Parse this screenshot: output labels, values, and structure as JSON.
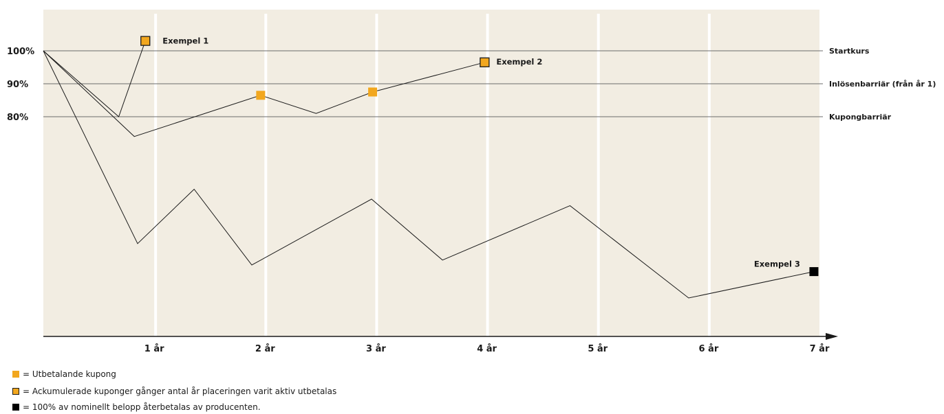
{
  "chart_data": {
    "type": "line",
    "colors": {
      "background": "#f2ede2",
      "grid": "#ffffff",
      "coupon": "#f2a71e",
      "line": "#1a1a1a"
    },
    "x_ticks": [
      {
        "x": 1,
        "label": "1 år"
      },
      {
        "x": 2,
        "label": "2 år"
      },
      {
        "x": 3,
        "label": "3 år"
      },
      {
        "x": 4,
        "label": "4 år"
      },
      {
        "x": 5,
        "label": "5 år"
      },
      {
        "x": 6,
        "label": "6 år"
      },
      {
        "x": 7,
        "label": "7 år"
      }
    ],
    "xlim": [
      0,
      7
    ],
    "ylim": [
      20,
      110
    ],
    "y_ticks": [
      {
        "y": 100,
        "label": "100%"
      },
      {
        "y": 90,
        "label": "90%"
      },
      {
        "y": 80,
        "label": "80%"
      }
    ],
    "reference_lines": [
      {
        "y": 100,
        "label": "Startkurs"
      },
      {
        "y": 90,
        "label": "Inlösenbarriär (från år 1)"
      },
      {
        "y": 80,
        "label": "Kupongbarriär"
      }
    ],
    "series": [
      {
        "points": [
          [
            0,
            100
          ],
          [
            0.68,
            80
          ],
          [
            0.92,
            103
          ]
        ],
        "label": "Exempel 1"
      },
      {
        "points": [
          [
            0,
            100
          ],
          [
            0.82,
            74
          ],
          [
            1.96,
            86.5
          ],
          [
            2.46,
            81
          ],
          [
            2.97,
            87.5
          ],
          [
            3.98,
            96.5
          ]
        ],
        "label": "Exempel 2"
      },
      {
        "points": [
          [
            0,
            100
          ],
          [
            0.85,
            41.5
          ],
          [
            1.36,
            58
          ],
          [
            1.88,
            35
          ],
          [
            2.96,
            55
          ],
          [
            3.6,
            36.5
          ],
          [
            4.75,
            53
          ],
          [
            5.82,
            25
          ],
          [
            6.95,
            33
          ]
        ],
        "label": "Exempel 3"
      }
    ],
    "markers": [
      {
        "x": 0.92,
        "y": 103,
        "type": "accumulated"
      },
      {
        "x": 1.96,
        "y": 86.5,
        "type": "coupon"
      },
      {
        "x": 2.97,
        "y": 87.5,
        "type": "coupon"
      },
      {
        "x": 3.98,
        "y": 96.5,
        "type": "accumulated"
      },
      {
        "x": 6.95,
        "y": 33,
        "type": "principal"
      }
    ]
  },
  "legend": [
    {
      "text": "= Utbetalande kupong"
    },
    {
      "text": "= Ackumulerade kuponger gånger antal år placeringen varit aktiv utbetalas"
    },
    {
      "text": "= 100% av nominellt belopp återbetalas av producenten."
    }
  ]
}
